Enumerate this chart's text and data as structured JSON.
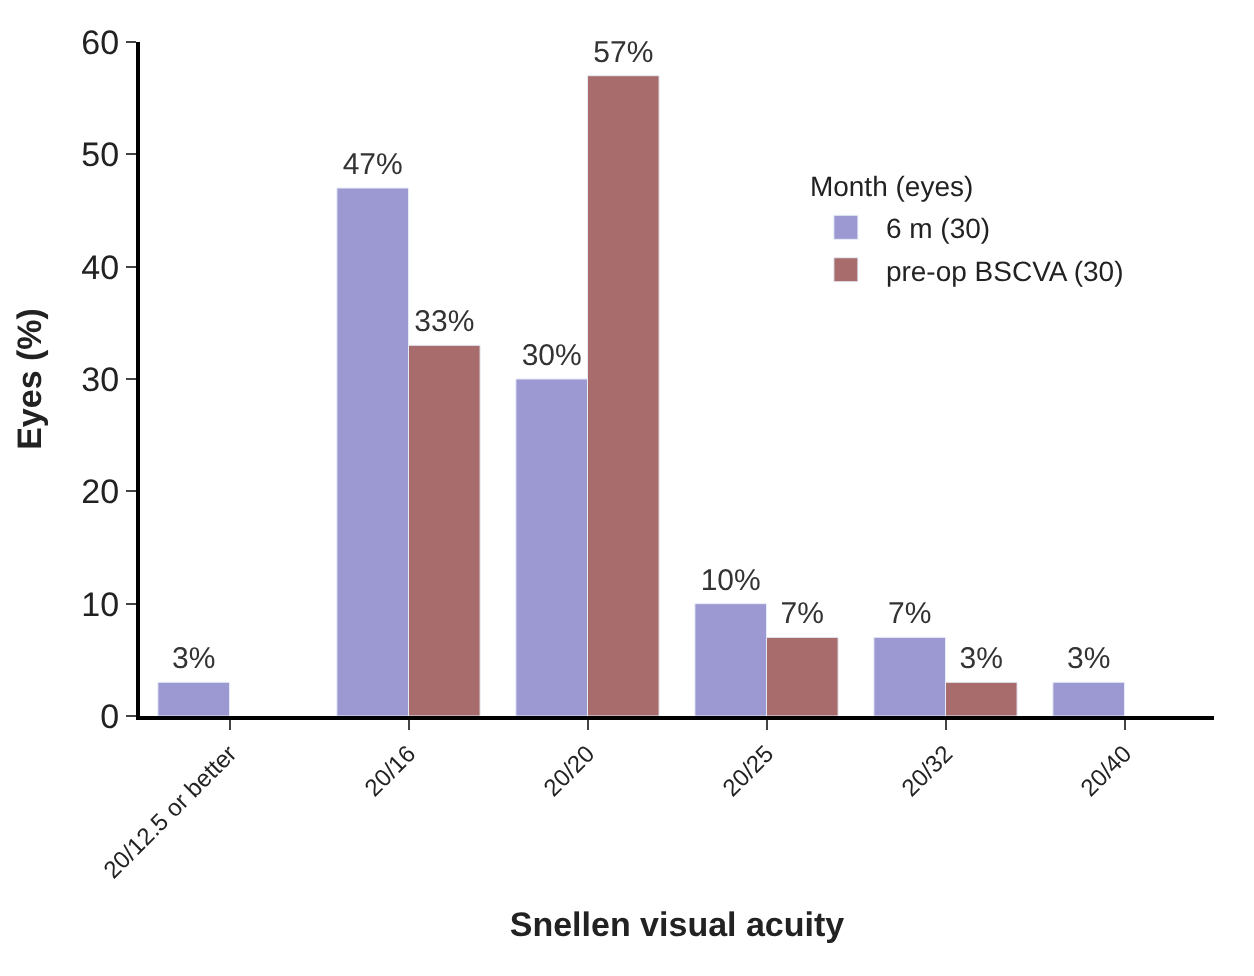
{
  "chart_data": {
    "type": "bar",
    "xlabel": "Snellen visual acuity",
    "ylabel": "Eyes (%)",
    "legend_title": "Month (eyes)",
    "categories": [
      "20/12.5 or better",
      "20/16",
      "20/20",
      "20/25",
      "20/32",
      "20/40"
    ],
    "series": [
      {
        "name": "6 m (30)",
        "color": "#9c98d2",
        "values": [
          3,
          47,
          30,
          10,
          7,
          3
        ],
        "value_labels": [
          "3%",
          "47%",
          "30%",
          "10%",
          "7%",
          "3%"
        ]
      },
      {
        "name": "pre-op BSCVA (30)",
        "color": "#a86c6c",
        "values": [
          null,
          33,
          57,
          7,
          3,
          null
        ],
        "value_labels": [
          null,
          "33%",
          "57%",
          "7%",
          "3%",
          null
        ]
      }
    ],
    "ylim": [
      0,
      60
    ],
    "yticks": [
      0,
      10,
      20,
      30,
      40,
      50,
      60
    ],
    "legend": "right"
  }
}
